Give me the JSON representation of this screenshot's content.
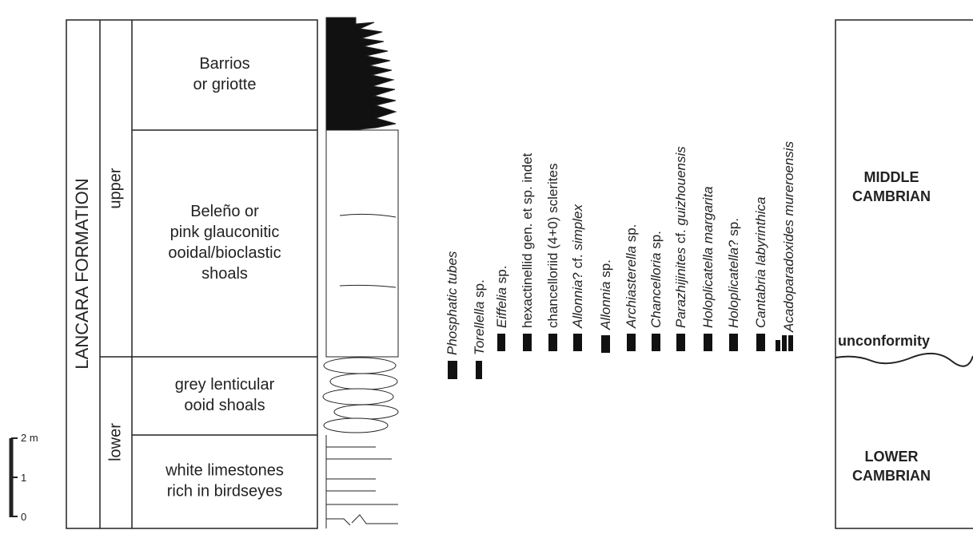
{
  "formation": "LANCARA FORMATION",
  "members": [
    "upper",
    "lower"
  ],
  "units": [
    {
      "lines": [
        "Barrios",
        "or griotte"
      ]
    },
    {
      "lines": [
        "Beleño or",
        "pink glauconitic",
        "ooidal/bioclastic",
        "shoals"
      ]
    },
    {
      "lines": [
        "grey lenticular",
        "ooid shoals"
      ]
    },
    {
      "lines": [
        "white limestones",
        "rich in birdseyes"
      ]
    }
  ],
  "taxa": [
    {
      "parts": [
        {
          "text": "Phosphatic tubes",
          "italic": true
        }
      ]
    },
    {
      "parts": [
        {
          "text": "Torellella",
          "italic": true
        },
        {
          "text": " sp.",
          "italic": false
        }
      ]
    },
    {
      "parts": [
        {
          "text": "Eiffelia",
          "italic": true
        },
        {
          "text": " sp.",
          "italic": false
        }
      ]
    },
    {
      "parts": [
        {
          "text": "hexactinellid gen. et sp. indet",
          "italic": false
        }
      ]
    },
    {
      "parts": [
        {
          "text": "chancelloriid (4+0) sclerites",
          "italic": false
        }
      ]
    },
    {
      "parts": [
        {
          "text": "Allonnia",
          "italic": true
        },
        {
          "text": "? cf. ",
          "italic": false
        },
        {
          "text": "simplex",
          "italic": true
        }
      ]
    },
    {
      "parts": [
        {
          "text": "Allonnia",
          "italic": true
        },
        {
          "text": " sp.",
          "italic": false
        }
      ]
    },
    {
      "parts": [
        {
          "text": "Archiasterella",
          "italic": true
        },
        {
          "text": " sp.",
          "italic": false
        }
      ]
    },
    {
      "parts": [
        {
          "text": "Chancelloria",
          "italic": true
        },
        {
          "text": " sp.",
          "italic": false
        }
      ]
    },
    {
      "parts": [
        {
          "text": "Parazhijinites",
          "italic": true
        },
        {
          "text": " cf. ",
          "italic": false
        },
        {
          "text": "guizhouensis",
          "italic": true
        }
      ]
    },
    {
      "parts": [
        {
          "text": "Holoplicatella margarita",
          "italic": true
        }
      ]
    },
    {
      "parts": [
        {
          "text": "Holoplicatella",
          "italic": true
        },
        {
          "text": "? sp.",
          "italic": false
        }
      ]
    },
    {
      "parts": [
        {
          "text": "Cantabria labyrinthica",
          "italic": true
        }
      ]
    },
    {
      "parts": [
        {
          "text": "Acadoparadoxides mureroensis",
          "italic": true
        }
      ]
    }
  ],
  "scale": [
    "2 m",
    "1",
    "0"
  ],
  "periods": {
    "upper": [
      "MIDDLE",
      "CAMBRIAN"
    ],
    "boundary": "unconformity",
    "lower": [
      "LOWER",
      "CAMBRIAN"
    ]
  }
}
